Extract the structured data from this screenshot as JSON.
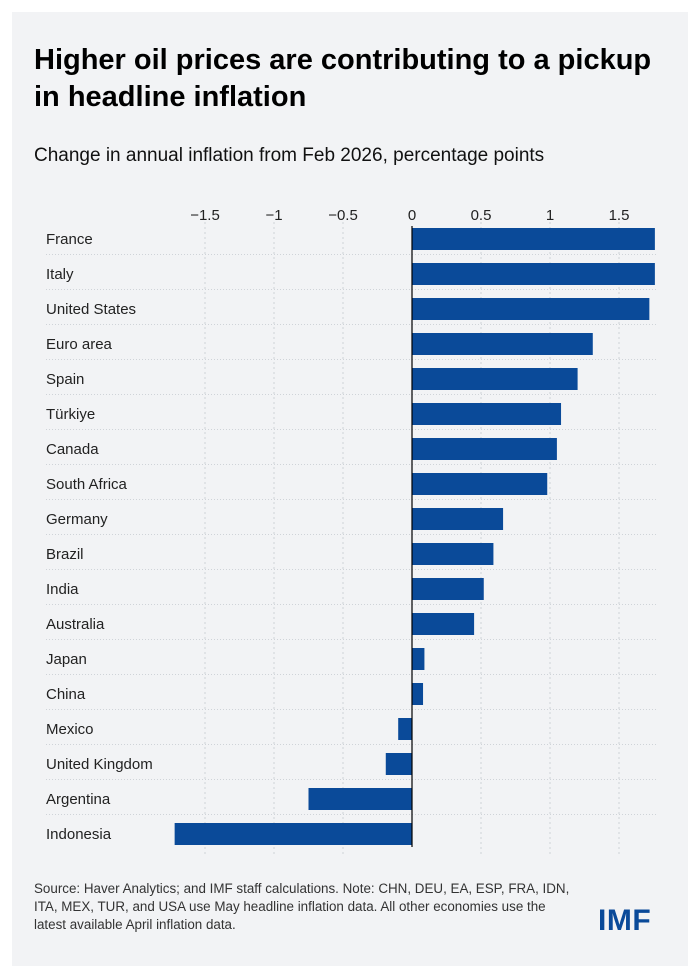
{
  "title": "Higher oil prices are contributing to a pickup in headline inflation",
  "subtitle": "Change in annual inflation from Feb 2026, percentage points",
  "source": "Source: Haver Analytics; and IMF staff calculations. Note: CHN, DEU, EA, ESP, FRA, IDN, ITA, MEX, TUR, and USA use May headline inflation data. All other economies use the latest available April inflation data.",
  "logo": "IMF",
  "colors": {
    "bar": "#0a4a99",
    "background": "#f2f3f5",
    "grid": "#cfd3d8"
  },
  "chart_data": {
    "type": "bar",
    "orientation": "horizontal",
    "categories": [
      "France",
      "Italy",
      "United States",
      "Euro area",
      "Spain",
      "Türkiye",
      "Canada",
      "South Africa",
      "Germany",
      "Brazil",
      "India",
      "Australia",
      "Japan",
      "China",
      "Mexico",
      "United Kingdom",
      "Argentina",
      "Indonesia"
    ],
    "values": [
      1.76,
      1.76,
      1.72,
      1.31,
      1.2,
      1.08,
      1.05,
      0.98,
      0.66,
      0.59,
      0.52,
      0.45,
      0.09,
      0.08,
      -0.1,
      -0.19,
      -0.75,
      -1.72
    ],
    "xlim": [
      -1.72,
      1.76
    ],
    "ticks": [
      -1.5,
      -1,
      -0.5,
      0,
      0.5,
      1,
      1.5
    ],
    "tick_labels": [
      "−1.5",
      "−1",
      "−0.5",
      "0",
      "0.5",
      "1",
      "1.5"
    ],
    "axis_position": "top",
    "grid": true
  }
}
